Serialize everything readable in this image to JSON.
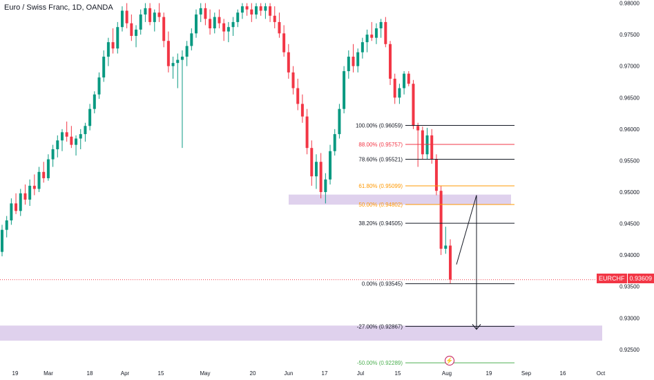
{
  "header": {
    "title": "Euro / Swiss Franc, 1D, OANDA"
  },
  "symbol_tag": {
    "symbol": "EURCHF",
    "price": "0.93609"
  },
  "alert_icon": {
    "glyph": "⚡",
    "name": "alert-bolt-icon"
  },
  "colors": {
    "up": "#089981",
    "down": "#f23645",
    "fib_black": "#131722",
    "fib_red": "#f23645",
    "fib_orange": "#ff9800",
    "fib_green": "#4caf50",
    "zone": "#d9c9ea",
    "price_line": "#f23645"
  },
  "chart_data": {
    "type": "candlestick",
    "title": "Euro / Swiss Franc, 1D, OANDA",
    "x_ticks": [
      "19",
      "Mar",
      "18",
      "Apr",
      "15",
      "May",
      "20",
      "Jun",
      "17",
      "Jul",
      "15",
      "Aug",
      "19",
      "Sep",
      "16",
      "Oct"
    ],
    "y_ticks": [
      "0.98000",
      "0.97500",
      "0.97000",
      "0.96500",
      "0.96000",
      "0.95500",
      "0.95000",
      "0.94500",
      "0.94000",
      "0.93500",
      "0.93000",
      "0.92500"
    ],
    "ylim": [
      0.9218,
      0.9805
    ],
    "last_price": 0.93609,
    "candles": [
      [
        0.9405,
        0.9448,
        0.9398,
        0.944
      ],
      [
        0.944,
        0.9462,
        0.9428,
        0.9455
      ],
      [
        0.9455,
        0.949,
        0.9448,
        0.9482
      ],
      [
        0.9482,
        0.9498,
        0.9465,
        0.947
      ],
      [
        0.947,
        0.9505,
        0.9462,
        0.9498
      ],
      [
        0.9498,
        0.9512,
        0.948,
        0.9488
      ],
      [
        0.9488,
        0.952,
        0.9478,
        0.951
      ],
      [
        0.951,
        0.9528,
        0.9495,
        0.9505
      ],
      [
        0.9505,
        0.954,
        0.95,
        0.9532
      ],
      [
        0.9532,
        0.9548,
        0.9515,
        0.9522
      ],
      [
        0.9522,
        0.956,
        0.9518,
        0.9552
      ],
      [
        0.9552,
        0.9575,
        0.954,
        0.9568
      ],
      [
        0.9568,
        0.959,
        0.9555,
        0.9582
      ],
      [
        0.9582,
        0.96,
        0.9565,
        0.9595
      ],
      [
        0.9595,
        0.9612,
        0.958,
        0.9588
      ],
      [
        0.9588,
        0.9605,
        0.957,
        0.9575
      ],
      [
        0.9575,
        0.959,
        0.9558,
        0.9585
      ],
      [
        0.9585,
        0.96,
        0.9568,
        0.9592
      ],
      [
        0.9592,
        0.961,
        0.958,
        0.9605
      ],
      [
        0.9605,
        0.964,
        0.9598,
        0.9632
      ],
      [
        0.9632,
        0.966,
        0.9625,
        0.9655
      ],
      [
        0.9655,
        0.969,
        0.9648,
        0.9682
      ],
      [
        0.9682,
        0.9725,
        0.9675,
        0.9715
      ],
      [
        0.9715,
        0.9745,
        0.97,
        0.9738
      ],
      [
        0.9738,
        0.976,
        0.972,
        0.9728
      ],
      [
        0.9728,
        0.977,
        0.972,
        0.9762
      ],
      [
        0.9762,
        0.9795,
        0.9755,
        0.9788
      ],
      [
        0.9788,
        0.98,
        0.976,
        0.9768
      ],
      [
        0.9768,
        0.9782,
        0.974,
        0.9748
      ],
      [
        0.9748,
        0.9765,
        0.973,
        0.9758
      ],
      [
        0.9758,
        0.979,
        0.975,
        0.9782
      ],
      [
        0.9782,
        0.98,
        0.977,
        0.9792
      ],
      [
        0.9792,
        0.98,
        0.9765,
        0.977
      ],
      [
        0.977,
        0.979,
        0.9755,
        0.9785
      ],
      [
        0.9785,
        0.98,
        0.977,
        0.9778
      ],
      [
        0.9778,
        0.9785,
        0.973,
        0.974
      ],
      [
        0.974,
        0.9755,
        0.969,
        0.97
      ],
      [
        0.97,
        0.9715,
        0.968,
        0.9705
      ],
      [
        0.9705,
        0.972,
        0.9665,
        0.971
      ],
      [
        0.971,
        0.9725,
        0.957,
        0.9715
      ],
      [
        0.9715,
        0.974,
        0.97,
        0.9732
      ],
      [
        0.9732,
        0.976,
        0.9725,
        0.9752
      ],
      [
        0.9752,
        0.979,
        0.9745,
        0.9782
      ],
      [
        0.9782,
        0.98,
        0.977,
        0.9792
      ],
      [
        0.9792,
        0.98,
        0.9765,
        0.9775
      ],
      [
        0.9775,
        0.979,
        0.975,
        0.976
      ],
      [
        0.976,
        0.9785,
        0.9752,
        0.9778
      ],
      [
        0.9778,
        0.979,
        0.976,
        0.9768
      ],
      [
        0.9768,
        0.9775,
        0.974,
        0.9755
      ],
      [
        0.9755,
        0.977,
        0.9738,
        0.9762
      ],
      [
        0.9762,
        0.9778,
        0.9748,
        0.977
      ],
      [
        0.977,
        0.979,
        0.9762,
        0.9785
      ],
      [
        0.9785,
        0.98,
        0.9775,
        0.9795
      ],
      [
        0.9795,
        0.98,
        0.978,
        0.979
      ],
      [
        0.979,
        0.98,
        0.977,
        0.9782
      ],
      [
        0.9782,
        0.98,
        0.9775,
        0.9795
      ],
      [
        0.9795,
        0.98,
        0.978,
        0.9788
      ],
      [
        0.9788,
        0.98,
        0.9775,
        0.9795
      ],
      [
        0.9795,
        0.98,
        0.977,
        0.978
      ],
      [
        0.978,
        0.9795,
        0.976,
        0.977
      ],
      [
        0.977,
        0.9785,
        0.9745,
        0.9752
      ],
      [
        0.9752,
        0.9765,
        0.9715,
        0.9722
      ],
      [
        0.9722,
        0.9735,
        0.968,
        0.969
      ],
      [
        0.969,
        0.97,
        0.9655,
        0.9665
      ],
      [
        0.9665,
        0.968,
        0.963,
        0.964
      ],
      [
        0.964,
        0.9655,
        0.961,
        0.962
      ],
      [
        0.962,
        0.9632,
        0.956,
        0.957
      ],
      [
        0.957,
        0.9582,
        0.951,
        0.9525
      ],
      [
        0.9525,
        0.956,
        0.9505,
        0.9548
      ],
      [
        0.9548,
        0.9562,
        0.949,
        0.95
      ],
      [
        0.95,
        0.953,
        0.9482,
        0.952
      ],
      [
        0.952,
        0.9575,
        0.9512,
        0.9565
      ],
      [
        0.9565,
        0.96,
        0.9558,
        0.9592
      ],
      [
        0.9592,
        0.964,
        0.9585,
        0.9632
      ],
      [
        0.9632,
        0.97,
        0.9625,
        0.9692
      ],
      [
        0.9692,
        0.9725,
        0.968,
        0.9715
      ],
      [
        0.9715,
        0.9735,
        0.969,
        0.97
      ],
      [
        0.97,
        0.9728,
        0.969,
        0.9722
      ],
      [
        0.9722,
        0.9745,
        0.9712,
        0.9738
      ],
      [
        0.9738,
        0.9758,
        0.9722,
        0.975
      ],
      [
        0.975,
        0.977,
        0.974,
        0.9745
      ],
      [
        0.9745,
        0.9768,
        0.9735,
        0.976
      ],
      [
        0.976,
        0.9775,
        0.9745,
        0.977
      ],
      [
        0.977,
        0.9778,
        0.973,
        0.9735
      ],
      [
        0.9735,
        0.974,
        0.967,
        0.968
      ],
      [
        0.968,
        0.9688,
        0.964,
        0.965
      ],
      [
        0.965,
        0.9672,
        0.964,
        0.9665
      ],
      [
        0.9665,
        0.9692,
        0.9655,
        0.9688
      ],
      [
        0.9688,
        0.9692,
        0.9668,
        0.9672
      ],
      [
        0.9672,
        0.9678,
        0.96,
        0.9605
      ],
      [
        0.9605,
        0.961,
        0.954,
        0.9598
      ],
      [
        0.9598,
        0.9604,
        0.9552,
        0.956
      ],
      [
        0.956,
        0.9602,
        0.9552,
        0.959
      ],
      [
        0.959,
        0.96,
        0.9545,
        0.9552
      ],
      [
        0.9552,
        0.956,
        0.9495,
        0.9502
      ],
      [
        0.9502,
        0.951,
        0.94,
        0.941
      ],
      [
        0.941,
        0.9445,
        0.9402,
        0.9415
      ],
      [
        0.9415,
        0.9425,
        0.9355,
        0.9361
      ]
    ],
    "fib_levels": [
      {
        "label": "100.00% (0.96059)",
        "value": 0.96059,
        "color": "#131722"
      },
      {
        "label": "88.00% (0.95757)",
        "value": 0.95757,
        "color": "#f23645"
      },
      {
        "label": "78.60% (0.95521)",
        "value": 0.95521,
        "color": "#131722"
      },
      {
        "label": "61.80% (0.95099)",
        "value": 0.95099,
        "color": "#ff9800"
      },
      {
        "label": "50.00% (0.94802)",
        "value": 0.94802,
        "color": "#ff9800"
      },
      {
        "label": "38.20% (0.94505)",
        "value": 0.94505,
        "color": "#131722"
      },
      {
        "label": "0.00% (0.93545)",
        "value": 0.93545,
        "color": "#131722"
      },
      {
        "label": "-27.00% (0.92867)",
        "value": 0.92867,
        "color": "#131722"
      },
      {
        "label": "-50.00% (0.92289)",
        "value": 0.92289,
        "color": "#4caf50"
      }
    ],
    "zones": [
      {
        "name": "zone-upper",
        "from": 0.948,
        "to": 0.9496
      },
      {
        "name": "zone-lower",
        "from": 0.9264,
        "to": 0.9288
      }
    ]
  }
}
